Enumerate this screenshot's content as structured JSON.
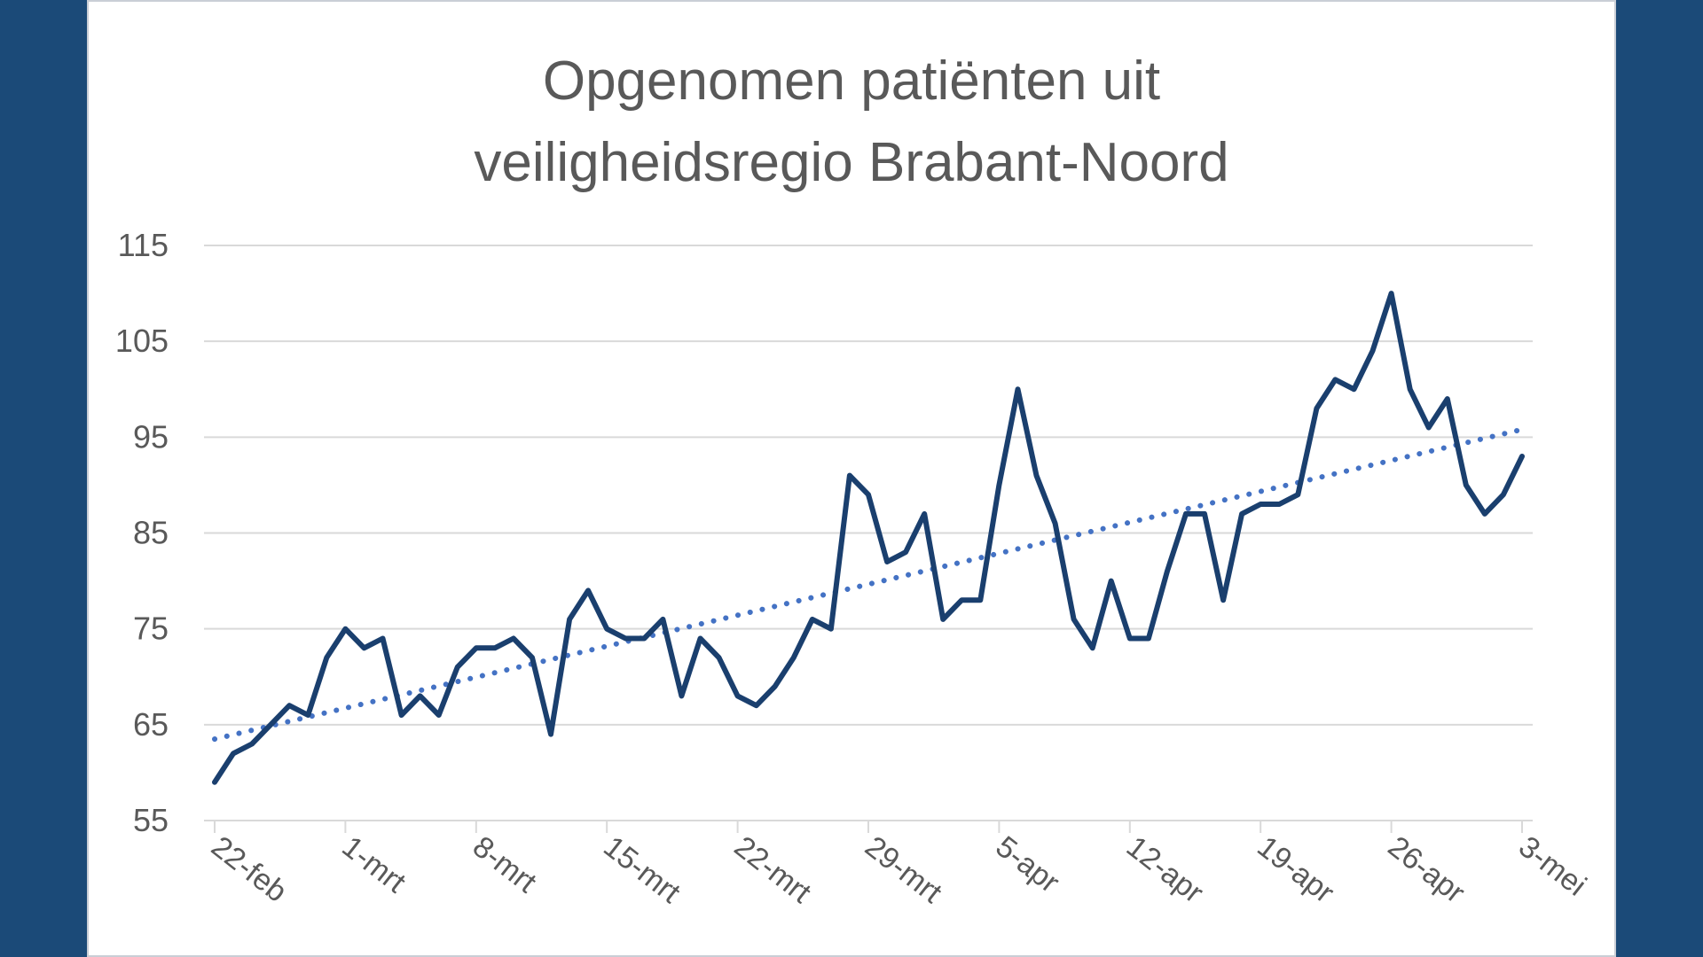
{
  "colors": {
    "background": "#1b4a78",
    "panel": "#ffffff",
    "line": "#1a3f6e",
    "trendline": "#4472c4",
    "gridline": "#d9d9d9",
    "text": "#595959"
  },
  "chart_data": {
    "type": "line",
    "title_lines": [
      "Opgenomen patiënten uit",
      "veiligheidsregio Brabant-Noord"
    ],
    "xlabel": "",
    "ylabel": "",
    "ylim": [
      55,
      115
    ],
    "yticks": [
      55,
      65,
      75,
      85,
      95,
      105,
      115
    ],
    "xtick_labels": [
      "22-feb",
      "1-mrt",
      "8-mrt",
      "15-mrt",
      "22-mrt",
      "29-mrt",
      "5-apr",
      "12-apr",
      "19-apr",
      "26-apr",
      "3-mei"
    ],
    "x_start": "22-feb",
    "x_end": "3-mei",
    "grid": true,
    "legend": "none",
    "series": [
      {
        "values": [
          59,
          62,
          63,
          65,
          67,
          66,
          72,
          75,
          73,
          74,
          66,
          68,
          66,
          71,
          73,
          73,
          74,
          72,
          64,
          76,
          79,
          75,
          74,
          74,
          76,
          68,
          74,
          72,
          68,
          67,
          69,
          72,
          76,
          75,
          91,
          89,
          82,
          83,
          87,
          76,
          78,
          78,
          90,
          100,
          91,
          86,
          76,
          73,
          80,
          74,
          74,
          81,
          87,
          87,
          78,
          87,
          88,
          88,
          89,
          98,
          101,
          100,
          104,
          110,
          100,
          96,
          99,
          90,
          87,
          89,
          93
        ]
      },
      {
        "trend": "linear",
        "style": "dotted",
        "values": [
          63.5,
          95.8
        ]
      }
    ]
  }
}
